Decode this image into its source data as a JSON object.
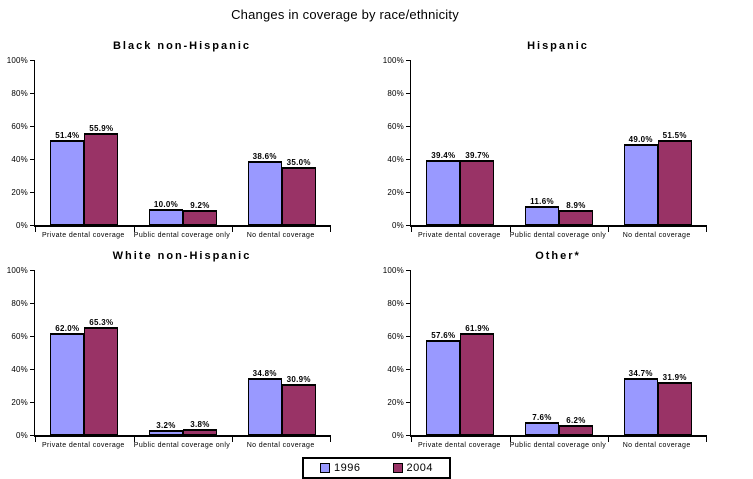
{
  "title": "Changes in coverage by race/ethnicity",
  "colors": {
    "series_1996": "#9999ff",
    "series_2004": "#993366",
    "bar_border": "#000000",
    "axis": "#000000",
    "background": "#ffffff"
  },
  "y_axis": {
    "tick_values": [
      0,
      20,
      40,
      60,
      80,
      100
    ],
    "tick_labels": [
      "0%",
      "20%",
      "40%",
      "60%",
      "80%",
      "100%"
    ]
  },
  "legend": {
    "position": "bottom-center",
    "entries": [
      {
        "label": "1996",
        "color": "#9999ff"
      },
      {
        "label": "2004",
        "color": "#993366"
      }
    ]
  },
  "chart_data": [
    {
      "type": "bar",
      "title": "Black non-Hispanic",
      "categories": [
        "Private dental coverage",
        "Public dental coverage only",
        "No dental coverage"
      ],
      "series": [
        {
          "name": "1996",
          "values": [
            51.4,
            10.0,
            38.6
          ]
        },
        {
          "name": "2004",
          "values": [
            55.9,
            9.2,
            35.0
          ]
        }
      ],
      "xlabel": "",
      "ylabel": "",
      "ylim": [
        0,
        100
      ],
      "yticks": [
        0,
        20,
        40,
        60,
        80,
        100
      ],
      "grid": false,
      "value_labels": true
    },
    {
      "type": "bar",
      "title": "Hispanic",
      "categories": [
        "Private dental coverage",
        "Public dental coverage only",
        "No dental coverage"
      ],
      "series": [
        {
          "name": "1996",
          "values": [
            39.4,
            11.6,
            49.0
          ]
        },
        {
          "name": "2004",
          "values": [
            39.7,
            8.9,
            51.5
          ]
        }
      ],
      "xlabel": "",
      "ylabel": "",
      "ylim": [
        0,
        100
      ],
      "yticks": [
        0,
        20,
        40,
        60,
        80,
        100
      ],
      "grid": false,
      "value_labels": true
    },
    {
      "type": "bar",
      "title": "White non-Hispanic",
      "categories": [
        "Private dental coverage",
        "Public dental coverage only",
        "No dental coverage"
      ],
      "series": [
        {
          "name": "1996",
          "values": [
            62.0,
            3.2,
            34.8
          ]
        },
        {
          "name": "2004",
          "values": [
            65.3,
            3.8,
            30.9
          ]
        }
      ],
      "xlabel": "",
      "ylabel": "",
      "ylim": [
        0,
        100
      ],
      "yticks": [
        0,
        20,
        40,
        60,
        80,
        100
      ],
      "grid": false,
      "value_labels": true
    },
    {
      "type": "bar",
      "title": "Other*",
      "categories": [
        "Private dental coverage",
        "Public dental coverage only",
        "No dental coverage"
      ],
      "series": [
        {
          "name": "1996",
          "values": [
            57.6,
            7.6,
            34.7
          ]
        },
        {
          "name": "2004",
          "values": [
            61.9,
            6.2,
            31.9
          ]
        }
      ],
      "xlabel": "",
      "ylabel": "",
      "ylim": [
        0,
        100
      ],
      "yticks": [
        0,
        20,
        40,
        60,
        80,
        100
      ],
      "grid": false,
      "value_labels": true
    }
  ]
}
